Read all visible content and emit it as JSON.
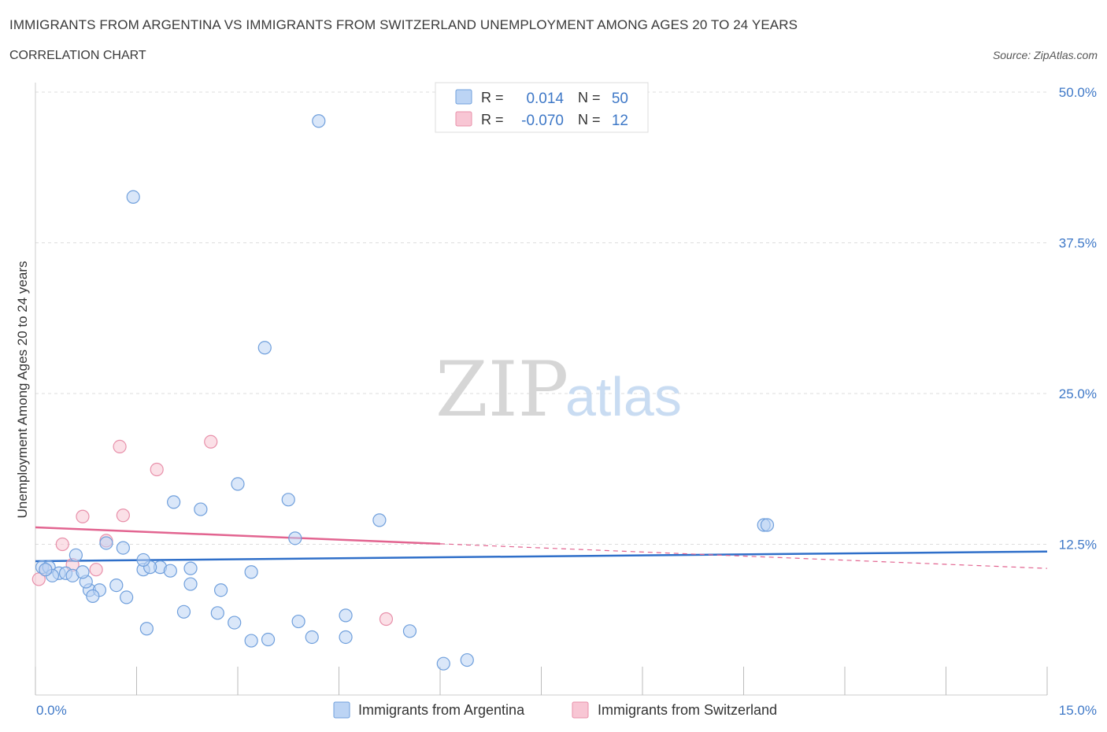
{
  "header": {
    "title": "IMMIGRANTS FROM ARGENTINA VS IMMIGRANTS FROM SWITZERLAND UNEMPLOYMENT AMONG AGES 20 TO 24 YEARS",
    "subtitle": "CORRELATION CHART",
    "source": "Source: ZipAtlas.com"
  },
  "watermark": {
    "zip": "ZIP",
    "atlas": "atlas"
  },
  "stats": {
    "r_label": "R =",
    "n_label": "N =",
    "rows": [
      {
        "series": "argentina",
        "r": "0.014",
        "n": "50"
      },
      {
        "series": "switzerland",
        "r": "-0.070",
        "n": "12"
      }
    ]
  },
  "colors": {
    "argentina_fill": "#bcd4f4",
    "argentina_stroke": "#6f9fdc",
    "argentina_line": "#2f6fc9",
    "switzerland_fill": "#f8c6d4",
    "switzerland_stroke": "#e890aa",
    "switzerland_line": "#e26490",
    "grid": "#dddddd",
    "axis_text": "#3e78c7"
  },
  "chart_data": {
    "type": "scatter",
    "title": "IMMIGRANTS FROM ARGENTINA VS IMMIGRANTS FROM SWITZERLAND UNEMPLOYMENT AMONG AGES 20 TO 24 YEARS",
    "xlabel": "",
    "ylabel": "Unemployment Among Ages 20 to 24 years",
    "xlim": [
      0,
      15
    ],
    "ylim": [
      0,
      50
    ],
    "x_tick_labels": [
      "0.0%",
      "15.0%"
    ],
    "y_ticks": [
      12.5,
      25,
      37.5,
      50
    ],
    "y_tick_labels": [
      "12.5%",
      "25.0%",
      "37.5%",
      "50.0%"
    ],
    "grid": true,
    "legend_position": "bottom-center",
    "series": [
      {
        "name": "Immigrants from Argentina",
        "key": "argentina",
        "trend": {
          "x0": 0,
          "y0": 11.1,
          "x1": 15,
          "y1": 11.9,
          "dashed_from": null
        },
        "points": [
          [
            0.1,
            10.6
          ],
          [
            0.2,
            10.6
          ],
          [
            0.35,
            10.1
          ],
          [
            0.45,
            10.1
          ],
          [
            0.6,
            11.6
          ],
          [
            0.8,
            8.7
          ],
          [
            1.05,
            12.6
          ],
          [
            0.25,
            9.9
          ],
          [
            0.55,
            9.9
          ],
          [
            0.75,
            9.4
          ],
          [
            0.95,
            8.7
          ],
          [
            1.2,
            9.1
          ],
          [
            1.35,
            8.1
          ],
          [
            1.6,
            10.4
          ],
          [
            1.85,
            10.6
          ],
          [
            2.3,
            10.5
          ],
          [
            1.7,
            10.6
          ],
          [
            2.3,
            9.2
          ],
          [
            2.75,
            8.7
          ],
          [
            3.2,
            10.2
          ],
          [
            1.65,
            5.5
          ],
          [
            2.2,
            6.9
          ],
          [
            2.7,
            6.8
          ],
          [
            2.95,
            6.0
          ],
          [
            3.2,
            4.5
          ],
          [
            3.45,
            4.6
          ],
          [
            3.9,
            6.1
          ],
          [
            4.1,
            4.8
          ],
          [
            4.6,
            6.6
          ],
          [
            4.6,
            4.8
          ],
          [
            5.55,
            5.3
          ],
          [
            6.05,
            2.6
          ],
          [
            6.4,
            2.9
          ],
          [
            2.05,
            16.0
          ],
          [
            2.45,
            15.4
          ],
          [
            3.0,
            17.5
          ],
          [
            3.75,
            16.2
          ],
          [
            3.85,
            13.0
          ],
          [
            5.1,
            14.5
          ],
          [
            1.3,
            12.2
          ],
          [
            1.6,
            11.2
          ],
          [
            0.7,
            10.2
          ],
          [
            0.85,
            8.2
          ],
          [
            2.0,
            10.3
          ],
          [
            1.45,
            41.3
          ],
          [
            3.4,
            28.8
          ],
          [
            4.2,
            47.6
          ],
          [
            10.8,
            14.1
          ],
          [
            10.85,
            14.1
          ],
          [
            0.15,
            10.4
          ]
        ]
      },
      {
        "name": "Immigrants from Switzerland",
        "key": "switzerland",
        "trend": {
          "x0": 0,
          "y0": 13.9,
          "x1": 15,
          "y1": 10.5,
          "dashed_from": 6
        },
        "points": [
          [
            0.05,
            9.6
          ],
          [
            0.15,
            10.4
          ],
          [
            0.4,
            12.5
          ],
          [
            0.55,
            10.8
          ],
          [
            0.7,
            14.8
          ],
          [
            0.9,
            10.4
          ],
          [
            1.05,
            12.8
          ],
          [
            1.3,
            14.9
          ],
          [
            1.25,
            20.6
          ],
          [
            1.8,
            18.7
          ],
          [
            2.6,
            21.0
          ],
          [
            5.2,
            6.3
          ]
        ]
      }
    ]
  },
  "legend": {
    "items": [
      {
        "label": "Immigrants from Argentina",
        "key": "argentina"
      },
      {
        "label": "Immigrants from Switzerland",
        "key": "switzerland"
      }
    ]
  }
}
